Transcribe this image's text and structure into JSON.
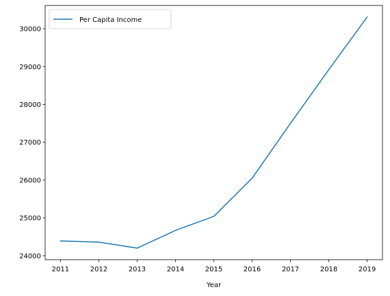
{
  "chart_data": {
    "type": "line",
    "title": "",
    "xlabel": "Year",
    "ylabel": "",
    "x": [
      2011,
      2012,
      2013,
      2014,
      2015,
      2016,
      2017,
      2018,
      2019
    ],
    "series": [
      {
        "name": "Per Capita Income",
        "color": "#1f77b4",
        "values": [
          24390,
          24360,
          24200,
          24670,
          25040,
          26050,
          27500,
          28920,
          30310
        ]
      }
    ],
    "xticks": [
      "2011",
      "2012",
      "2013",
      "2014",
      "2015",
      "2016",
      "2017",
      "2018",
      "2019"
    ],
    "yticks": [
      "24000",
      "25000",
      "26000",
      "27000",
      "28000",
      "29000",
      "30000"
    ],
    "xlim": [
      2010.6,
      2019.4
    ],
    "ylim": [
      23895,
      30615
    ],
    "grid": false,
    "legend_position": "top-left"
  }
}
